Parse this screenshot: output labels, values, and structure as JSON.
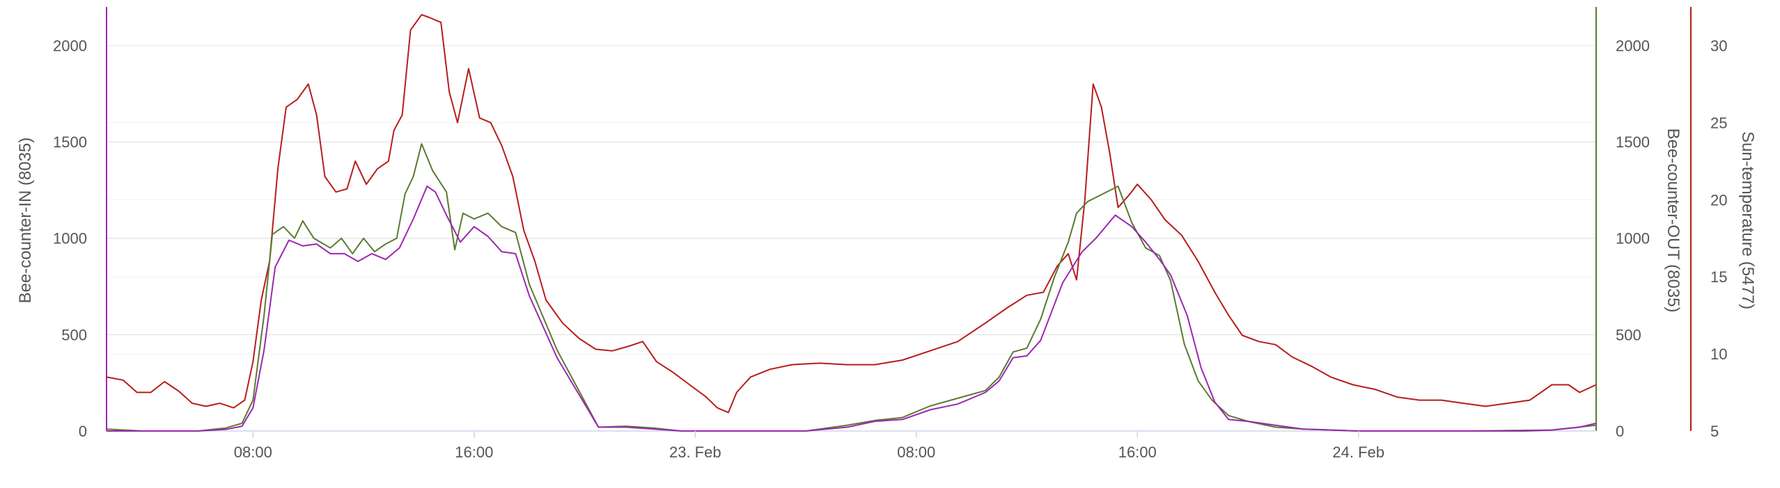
{
  "chart_data": {
    "type": "line",
    "x_ticks": [
      "08:00",
      "16:00",
      "23. Feb",
      "08:00",
      "16:00",
      "24. Feb"
    ],
    "x_tick_hours": [
      8,
      16,
      24,
      32,
      40,
      48
    ],
    "x_range_hours": [
      2.7,
      56.6
    ],
    "grid": true,
    "left_axis": {
      "title": "Bee-counter-IN (8035)",
      "ticks": [
        "0",
        "500",
        "1000",
        "1500",
        "2000"
      ],
      "range": [
        0,
        2200
      ],
      "color": "#9c27b0"
    },
    "right_axis_1": {
      "title": "Bee-counter-OUT (8035)",
      "ticks": [
        "0",
        "500",
        "1000",
        "1500",
        "2000"
      ],
      "range": [
        0,
        2200
      ],
      "color": "#5a7a30"
    },
    "right_axis_2": {
      "title": "Sun-temperature (5477)",
      "ticks": [
        "5",
        "10",
        "15",
        "20",
        "25",
        "30"
      ],
      "range": [
        5,
        32.5
      ],
      "color": "#b71c1c"
    },
    "series": [
      {
        "name": "Bee-counter-IN (8035)",
        "axis": "left",
        "color": "#9c27b0",
        "points": [
          [
            2.7,
            0
          ],
          [
            4,
            0
          ],
          [
            6,
            0
          ],
          [
            7,
            8
          ],
          [
            7.6,
            25
          ],
          [
            8,
            120
          ],
          [
            8.4,
            420
          ],
          [
            8.8,
            850
          ],
          [
            9.3,
            990
          ],
          [
            9.8,
            960
          ],
          [
            10.3,
            970
          ],
          [
            10.8,
            920
          ],
          [
            11.3,
            920
          ],
          [
            11.8,
            880
          ],
          [
            12.3,
            920
          ],
          [
            12.8,
            890
          ],
          [
            13.3,
            950
          ],
          [
            13.8,
            1100
          ],
          [
            14.3,
            1270
          ],
          [
            14.6,
            1240
          ],
          [
            15,
            1120
          ],
          [
            15.5,
            980
          ],
          [
            16,
            1060
          ],
          [
            16.5,
            1010
          ],
          [
            17,
            930
          ],
          [
            17.5,
            920
          ],
          [
            18,
            700
          ],
          [
            19,
            380
          ],
          [
            20.5,
            20
          ],
          [
            21.5,
            20
          ],
          [
            22.5,
            10
          ],
          [
            23.5,
            0
          ],
          [
            25.5,
            0
          ],
          [
            28,
            0
          ],
          [
            29.5,
            20
          ],
          [
            30.5,
            50
          ],
          [
            31.5,
            60
          ],
          [
            32.5,
            110
          ],
          [
            33.5,
            140
          ],
          [
            34.5,
            200
          ],
          [
            35,
            260
          ],
          [
            35.5,
            380
          ],
          [
            36,
            390
          ],
          [
            36.5,
            470
          ],
          [
            37.3,
            770
          ],
          [
            38,
            930
          ],
          [
            38.5,
            1000
          ],
          [
            39.2,
            1120
          ],
          [
            39.8,
            1060
          ],
          [
            40.3,
            980
          ],
          [
            40.8,
            890
          ],
          [
            41.2,
            810
          ],
          [
            41.8,
            600
          ],
          [
            42.3,
            330
          ],
          [
            42.8,
            150
          ],
          [
            43.3,
            60
          ],
          [
            44,
            50
          ],
          [
            45,
            30
          ],
          [
            46,
            10
          ],
          [
            48,
            0
          ],
          [
            52,
            0
          ],
          [
            54,
            0
          ],
          [
            55,
            5
          ],
          [
            56,
            20
          ],
          [
            56.6,
            40
          ]
        ]
      },
      {
        "name": "Bee-counter-OUT (8035)",
        "axis": "right1",
        "color": "#5a7a30",
        "points": [
          [
            2.7,
            10
          ],
          [
            4,
            0
          ],
          [
            6,
            0
          ],
          [
            7,
            15
          ],
          [
            7.6,
            40
          ],
          [
            8,
            160
          ],
          [
            8.4,
            600
          ],
          [
            8.7,
            1020
          ],
          [
            9.1,
            1060
          ],
          [
            9.5,
            1000
          ],
          [
            9.8,
            1090
          ],
          [
            10.2,
            1000
          ],
          [
            10.8,
            950
          ],
          [
            11.2,
            1000
          ],
          [
            11.6,
            920
          ],
          [
            12,
            1000
          ],
          [
            12.4,
            930
          ],
          [
            12.8,
            970
          ],
          [
            13.2,
            1000
          ],
          [
            13.5,
            1230
          ],
          [
            13.8,
            1320
          ],
          [
            14.1,
            1490
          ],
          [
            14.5,
            1350
          ],
          [
            15,
            1240
          ],
          [
            15.3,
            940
          ],
          [
            15.6,
            1130
          ],
          [
            16,
            1100
          ],
          [
            16.5,
            1130
          ],
          [
            17,
            1060
          ],
          [
            17.5,
            1030
          ],
          [
            18,
            760
          ],
          [
            19,
            420
          ],
          [
            20.5,
            20
          ],
          [
            21.5,
            25
          ],
          [
            22.5,
            15
          ],
          [
            23.5,
            0
          ],
          [
            25.5,
            0
          ],
          [
            28,
            0
          ],
          [
            29.5,
            30
          ],
          [
            30.5,
            55
          ],
          [
            31.5,
            70
          ],
          [
            32.5,
            130
          ],
          [
            33.5,
            170
          ],
          [
            34.5,
            210
          ],
          [
            35,
            280
          ],
          [
            35.5,
            410
          ],
          [
            36,
            430
          ],
          [
            36.5,
            580
          ],
          [
            37,
            800
          ],
          [
            37.5,
            980
          ],
          [
            37.8,
            1130
          ],
          [
            38.2,
            1190
          ],
          [
            39.3,
            1270
          ],
          [
            39.8,
            1080
          ],
          [
            40.3,
            950
          ],
          [
            40.8,
            910
          ],
          [
            41.2,
            780
          ],
          [
            41.7,
            450
          ],
          [
            42.2,
            260
          ],
          [
            42.7,
            160
          ],
          [
            43.3,
            80
          ],
          [
            44,
            50
          ],
          [
            45,
            20
          ],
          [
            46,
            10
          ],
          [
            48,
            0
          ],
          [
            52,
            0
          ],
          [
            55,
            5
          ],
          [
            56.6,
            30
          ]
        ]
      },
      {
        "name": "Sun-temperature (5477)",
        "axis": "right2",
        "color": "#b71c1c",
        "points": [
          [
            2.7,
            8.5
          ],
          [
            3.3,
            8.3
          ],
          [
            3.8,
            7.5
          ],
          [
            4.3,
            7.5
          ],
          [
            4.8,
            8.2
          ],
          [
            5.3,
            7.6
          ],
          [
            5.8,
            6.8
          ],
          [
            6.3,
            6.6
          ],
          [
            6.8,
            6.8
          ],
          [
            7.3,
            6.5
          ],
          [
            7.7,
            7
          ],
          [
            8,
            9.5
          ],
          [
            8.3,
            13.5
          ],
          [
            8.6,
            16
          ],
          [
            8.9,
            22
          ],
          [
            9.2,
            26
          ],
          [
            9.6,
            26.5
          ],
          [
            10,
            27.5
          ],
          [
            10.3,
            25.5
          ],
          [
            10.6,
            21.5
          ],
          [
            11,
            20.5
          ],
          [
            11.4,
            20.7
          ],
          [
            11.7,
            22.5
          ],
          [
            12.1,
            21
          ],
          [
            12.5,
            22
          ],
          [
            12.9,
            22.5
          ],
          [
            13.1,
            24.5
          ],
          [
            13.4,
            25.5
          ],
          [
            13.7,
            31
          ],
          [
            14.1,
            32
          ],
          [
            14.4,
            31.8
          ],
          [
            14.8,
            31.5
          ],
          [
            15.1,
            27
          ],
          [
            15.4,
            25
          ],
          [
            15.8,
            28.5
          ],
          [
            16.2,
            25.3
          ],
          [
            16.6,
            25
          ],
          [
            17,
            23.5
          ],
          [
            17.4,
            21.5
          ],
          [
            17.8,
            18
          ],
          [
            18.2,
            16
          ],
          [
            18.6,
            13.5
          ],
          [
            19.2,
            12
          ],
          [
            19.8,
            11
          ],
          [
            20.4,
            10.3
          ],
          [
            21,
            10.2
          ],
          [
            21.6,
            10.5
          ],
          [
            22.1,
            10.8
          ],
          [
            22.6,
            9.5
          ],
          [
            23.2,
            8.8
          ],
          [
            23.8,
            8
          ],
          [
            24.4,
            7.2
          ],
          [
            24.8,
            6.5
          ],
          [
            25.2,
            6.2
          ],
          [
            25.5,
            7.5
          ],
          [
            26,
            8.5
          ],
          [
            26.7,
            9
          ],
          [
            27.5,
            9.3
          ],
          [
            28.5,
            9.4
          ],
          [
            29.5,
            9.3
          ],
          [
            30.5,
            9.3
          ],
          [
            31.5,
            9.6
          ],
          [
            32.5,
            10.2
          ],
          [
            33.5,
            10.8
          ],
          [
            34.5,
            12
          ],
          [
            35.3,
            13
          ],
          [
            36,
            13.8
          ],
          [
            36.6,
            14
          ],
          [
            37.1,
            15.7
          ],
          [
            37.5,
            16.5
          ],
          [
            37.8,
            14.8
          ],
          [
            38.1,
            20
          ],
          [
            38.4,
            27.5
          ],
          [
            38.7,
            26
          ],
          [
            39,
            23
          ],
          [
            39.3,
            19.5
          ],
          [
            39.7,
            20.3
          ],
          [
            40,
            21
          ],
          [
            40.5,
            20
          ],
          [
            41,
            18.7
          ],
          [
            41.6,
            17.7
          ],
          [
            42.2,
            16
          ],
          [
            42.8,
            14
          ],
          [
            43.3,
            12.5
          ],
          [
            43.8,
            11.2
          ],
          [
            44.4,
            10.8
          ],
          [
            45,
            10.6
          ],
          [
            45.6,
            9.8
          ],
          [
            46.3,
            9.2
          ],
          [
            47,
            8.5
          ],
          [
            47.8,
            8
          ],
          [
            48.6,
            7.7
          ],
          [
            49.4,
            7.2
          ],
          [
            50.2,
            7
          ],
          [
            51,
            7
          ],
          [
            51.8,
            6.8
          ],
          [
            52.6,
            6.6
          ],
          [
            53.4,
            6.8
          ],
          [
            54.2,
            7
          ],
          [
            55,
            8
          ],
          [
            55.6,
            8
          ],
          [
            56,
            7.5
          ],
          [
            56.6,
            8
          ]
        ]
      }
    ]
  }
}
